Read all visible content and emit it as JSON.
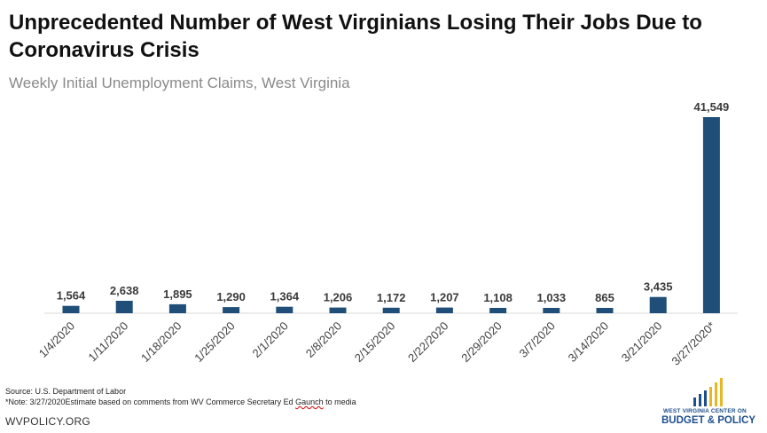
{
  "title": "Unprecedented Number of West Virginians Losing Their Jobs Due to Coronavirus Crisis",
  "subtitle": "Weekly Initial Unemployment Claims, West Virginia",
  "source": "Source: U.S. Department of Labor",
  "note_prefix": "*Note: 3/27/2020Estimate based on comments from WV Commerce Secretary Ed ",
  "note_wavy": "Gaunch",
  "note_suffix": " to media",
  "footer": "WVPOLICY.ORG",
  "logo": {
    "top_text": "WEST VIRGINIA CENTER ON",
    "bottom_text": "BUDGET & POLICY",
    "colors": {
      "blue": "#1d4f8c",
      "gold": "#e8b623"
    }
  },
  "colors": {
    "bar": "#1f4e79"
  },
  "chart_data": {
    "type": "bar",
    "categories": [
      "1/4/2020",
      "1/11/2020",
      "1/18/2020",
      "1/25/2020",
      "2/1/2020",
      "2/8/2020",
      "2/15/2020",
      "2/22/2020",
      "2/29/2020",
      "3/7/2020",
      "3/14/2020",
      "3/21/2020",
      "3/27/2020*"
    ],
    "values": [
      1564,
      2638,
      1895,
      1290,
      1364,
      1206,
      1172,
      1207,
      1108,
      1033,
      865,
      3435,
      41549
    ],
    "data_labels": [
      "1,564",
      "2,638",
      "1,895",
      "1,290",
      "1,364",
      "1,206",
      "1,172",
      "1,207",
      "1,108",
      "1,033",
      "865",
      "3,435",
      "41,549"
    ],
    "title": "Unprecedented Number of West Virginians Losing Their Jobs Due to Coronavirus Crisis",
    "subtitle": "Weekly Initial Unemployment Claims, West Virginia",
    "xlabel": "",
    "ylabel": "",
    "grid": false,
    "legend": "none"
  }
}
